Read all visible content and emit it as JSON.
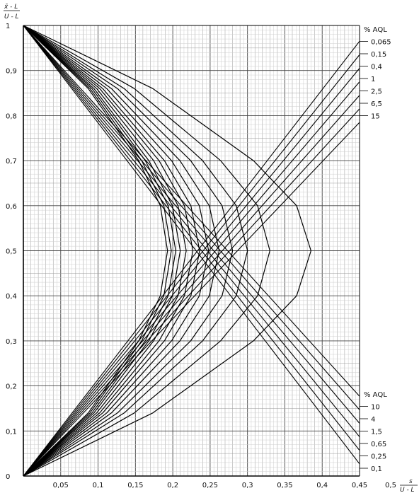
{
  "chart_data": {
    "type": "line",
    "title": "",
    "xlabel": {
      "numerator": "s",
      "denominator": "U - L"
    },
    "ylabel": {
      "numerator": "x̄ - L",
      "denominator": "U - L"
    },
    "xlim": [
      0,
      0.45
    ],
    "ylim": [
      0,
      1
    ],
    "x_ticks": [
      "0,05",
      "0,1",
      "0,15",
      "0,2",
      "0,25",
      "0,3",
      "0,35",
      "0,4",
      "0,45",
      "0,5"
    ],
    "y_ticks": [
      "0",
      "0,1",
      "0,2",
      "0,3",
      "0,4",
      "0,5",
      "0,6",
      "0,7",
      "0,8",
      "0,9",
      "1"
    ],
    "grid": true,
    "legends": [
      {
        "title": "% AQL",
        "placement": "top-right",
        "entries": [
          "0,065",
          "0,15",
          "0,4",
          "1",
          "2,5",
          "6,5",
          "15"
        ]
      },
      {
        "title": "% AQL",
        "placement": "bottom-right",
        "entries": [
          "10",
          "4",
          "1,5",
          "0,65",
          "0,25",
          "0,1"
        ]
      }
    ],
    "series": [
      {
        "name": "0,065",
        "apex_x": 0.193,
        "end_y": 0.965
      },
      {
        "name": "0,1",
        "apex_x": 0.198,
        "end_y": 0.027
      },
      {
        "name": "0,15",
        "apex_x": 0.204,
        "end_y": 0.935
      },
      {
        "name": "0,25",
        "apex_x": 0.21,
        "end_y": 0.057
      },
      {
        "name": "0,4",
        "apex_x": 0.218,
        "end_y": 0.905
      },
      {
        "name": "0,65",
        "apex_x": 0.227,
        "end_y": 0.087
      },
      {
        "name": "1",
        "apex_x": 0.236,
        "end_y": 0.875
      },
      {
        "name": "1,5",
        "apex_x": 0.248,
        "end_y": 0.117
      },
      {
        "name": "2,5",
        "apex_x": 0.262,
        "end_y": 0.845
      },
      {
        "name": "4",
        "apex_x": 0.28,
        "end_y": 0.147
      },
      {
        "name": "6,5",
        "apex_x": 0.3,
        "end_y": 0.815
      },
      {
        "name": "10",
        "apex_x": 0.33,
        "end_y": 0.177
      },
      {
        "name": "15",
        "apex_x": 0.385,
        "end_y": 0.785
      }
    ]
  }
}
